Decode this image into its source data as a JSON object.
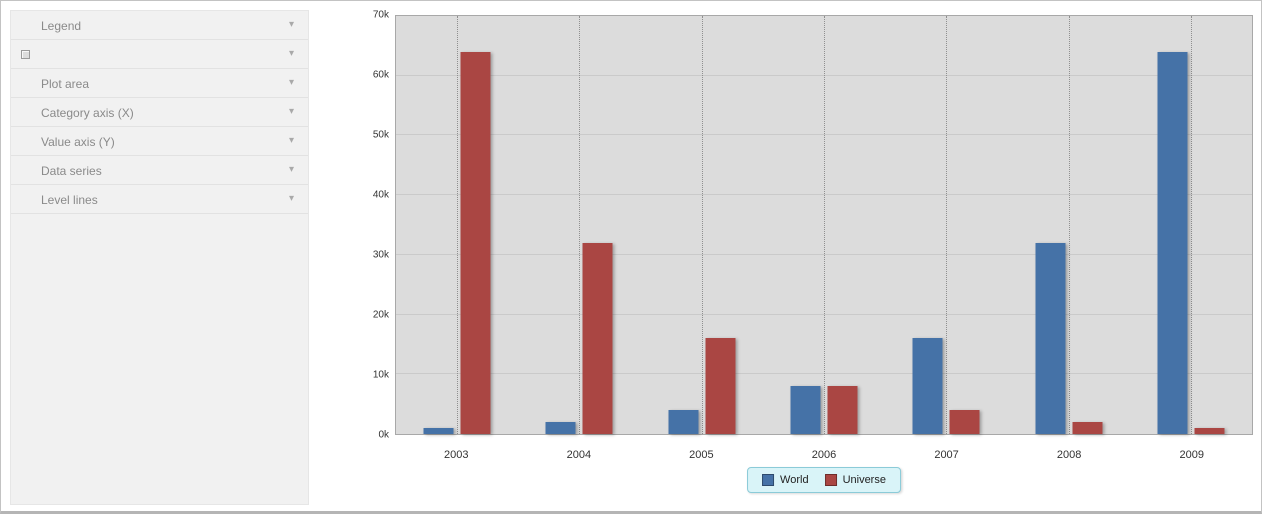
{
  "sidebar": {
    "chevron": "▾",
    "items": [
      {
        "label": "Legend",
        "icon": null
      },
      {
        "label": "",
        "icon": "series-swatch"
      },
      {
        "label": "Plot area",
        "icon": null
      },
      {
        "label": "Category axis (X)",
        "icon": null
      },
      {
        "label": "Value axis (Y)",
        "icon": null
      },
      {
        "label": "Data series",
        "icon": null
      },
      {
        "label": "Level lines",
        "icon": null
      }
    ]
  },
  "chart_data": {
    "type": "bar",
    "title": "",
    "xlabel": "",
    "ylabel": "",
    "categories": [
      "2003",
      "2004",
      "2005",
      "2006",
      "2007",
      "2008",
      "2009"
    ],
    "series": [
      {
        "name": "World",
        "color": "#4572a7",
        "values": [
          1000,
          2000,
          4000,
          8000,
          16000,
          32000,
          64000
        ]
      },
      {
        "name": "Universe",
        "color": "#aa4643",
        "values": [
          64000,
          32000,
          16000,
          8000,
          4000,
          2000,
          1000
        ]
      }
    ],
    "ylim": [
      0,
      70000
    ],
    "ytick_step": 10000,
    "ytick_labels": [
      "0k",
      "10k",
      "20k",
      "30k",
      "40k",
      "50k",
      "60k",
      "70k"
    ],
    "grid": true,
    "legend_position": "bottom-center"
  },
  "legend": {
    "items": [
      {
        "label": "World",
        "color": "#4572a7"
      },
      {
        "label": "Universe",
        "color": "#aa4643"
      }
    ]
  }
}
